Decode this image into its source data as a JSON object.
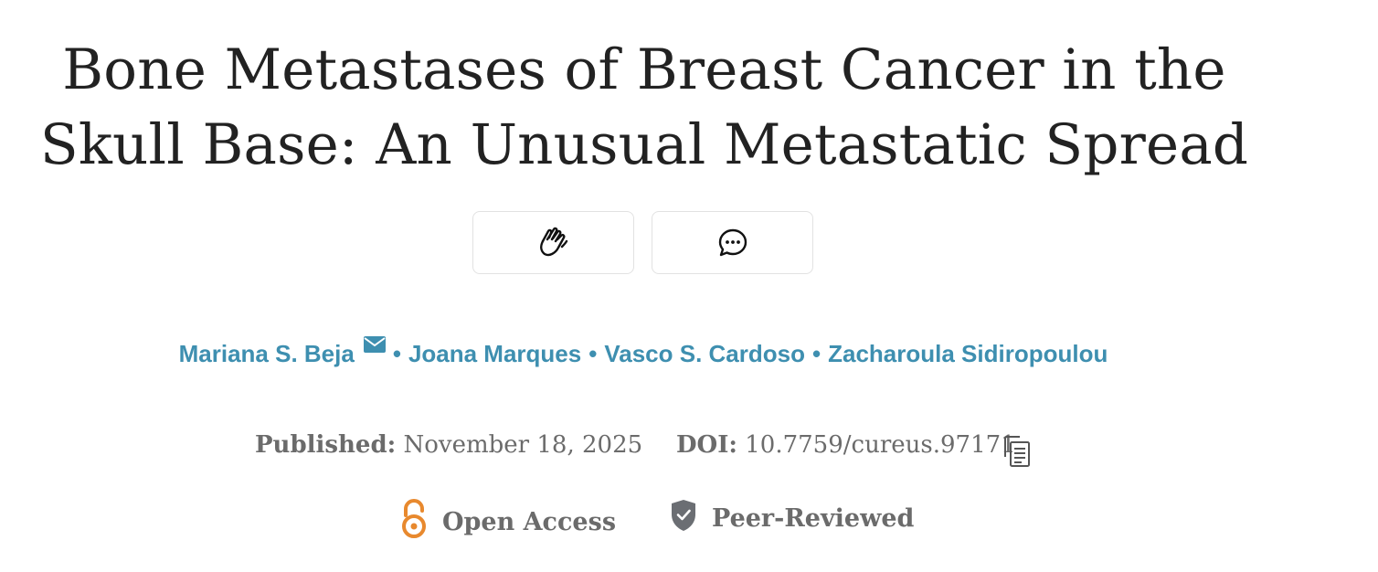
{
  "article": {
    "title": "Bone Metastases of Breast Cancer in the Skull Base: An Unusual Metastatic Spread"
  },
  "actions": [
    {
      "icon": "clap-icon"
    },
    {
      "icon": "comment-icon"
    }
  ],
  "authors": [
    {
      "name": "Mariana S. Beja",
      "icon": "mail-icon"
    },
    {
      "name": "Joana Marques"
    },
    {
      "name": "Vasco S. Cardoso"
    },
    {
      "name": "Zacharoula Sidiropoulou"
    }
  ],
  "author_separator": "•",
  "meta": {
    "published_label": "Published:",
    "published_value": "November 18, 2025",
    "doi_label": "DOI:",
    "doi_value": "10.7759/cureus.97171",
    "copy_icon": "copy-icon"
  },
  "badges": {
    "open_access": {
      "label": "Open Access",
      "icon": "open-lock-icon",
      "color": "#e8892e"
    },
    "peer_reviewed": {
      "label": "Peer-Reviewed",
      "icon": "shield-check-icon",
      "color": "#6b6e73"
    }
  },
  "colors": {
    "author_link": "#3e8fb0",
    "title_text": "#222222",
    "meta_text": "#6b6b6b",
    "button_border": "#e2e2e2"
  }
}
